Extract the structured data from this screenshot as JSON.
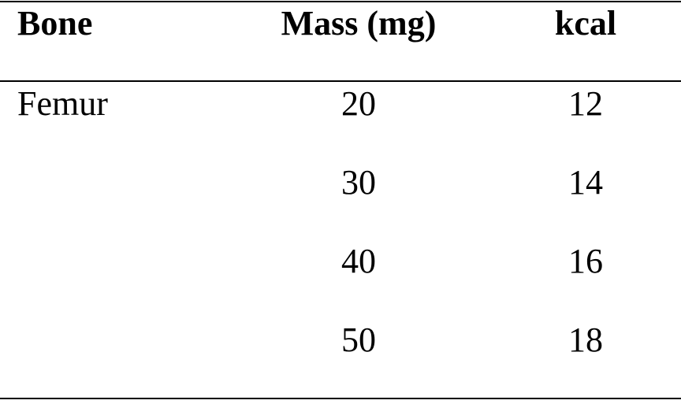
{
  "table": {
    "header": [
      "Bone",
      "Mass (mg)",
      "kcal"
    ],
    "rows": [
      [
        "Femur",
        20,
        12
      ],
      [
        null,
        30,
        14
      ],
      [
        null,
        40,
        16
      ],
      [
        null,
        50,
        18
      ]
    ]
  }
}
